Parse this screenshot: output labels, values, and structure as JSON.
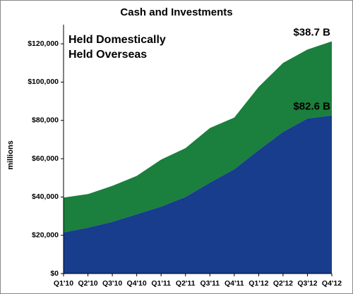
{
  "chart_data": {
    "type": "stacked_area",
    "title": "Cash and Investments",
    "y_label": "millions",
    "categories": [
      "Q1'10",
      "Q2'10",
      "Q3'10",
      "Q4'10",
      "Q1'11",
      "Q2'11",
      "Q3'11",
      "Q4'11",
      "Q1'12",
      "Q2'12",
      "Q3'12",
      "Q4'12"
    ],
    "series": [
      {
        "name": "Held Domestically",
        "color": "#1b7f3d",
        "values": [
          18200,
          17500,
          18800,
          20000,
          24500,
          25500,
          28500,
          27000,
          33000,
          36000,
          36000,
          38700
        ]
      },
      {
        "name": "Held Overseas",
        "color": "#183d8c",
        "values": [
          21500,
          24000,
          27000,
          31000,
          35000,
          40000,
          47500,
          54500,
          64500,
          74000,
          81000,
          82600
        ]
      }
    ],
    "annotations": [
      "$38.7 B",
      "$82.6 B"
    ],
    "ylim": [
      0,
      130000
    ],
    "yticks": [
      {
        "value": 0,
        "label": "$0"
      },
      {
        "value": 20000,
        "label": "$20,000"
      },
      {
        "value": 40000,
        "label": "$40,000"
      },
      {
        "value": 60000,
        "label": "$60,000"
      },
      {
        "value": 80000,
        "label": "$80,000"
      },
      {
        "value": 100000,
        "label": "$100,000"
      },
      {
        "value": 120000,
        "label": "$120,000"
      }
    ]
  }
}
